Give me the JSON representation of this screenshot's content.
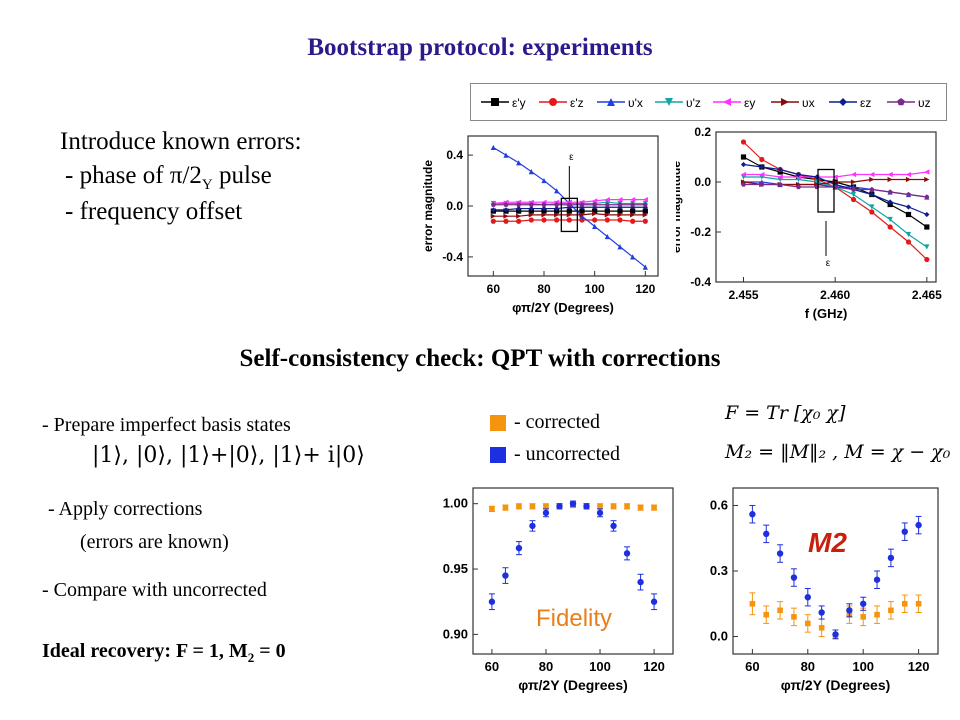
{
  "title": "Bootstrap protocol: experiments",
  "intro": {
    "heading": "Introduce known errors:",
    "item1": "- phase of  π/2",
    "item1_sub": "Y",
    "item1_tail": "  pulse",
    "item2": "- frequency offset"
  },
  "subtitle": "Self-consistency check: QPT with corrections",
  "steps": {
    "prepare": "- Prepare imperfect basis states",
    "kets": "|1⟩,  |0⟩,  |1⟩+|0⟩,  |1⟩+ i|0⟩",
    "apply": "- Apply corrections",
    "apply_note": "(errors are known)",
    "compare": "- Compare with uncorrected",
    "ideal": "Ideal recovery: F = 1,  M",
    "ideal_sub": "2",
    "ideal_tail": " = 0"
  },
  "key": {
    "corrected": "- corrected",
    "uncorrected": "- uncorrected",
    "corrected_color": "#f5950f",
    "uncorrected_color": "#1d2fe0"
  },
  "formulas": {
    "f": "F = Tr [χ₀ χ]",
    "m2": "M₂ = ‖M‖₂ ,   M = χ − χ₀"
  },
  "legend": {
    "entries": [
      {
        "label": "ε'y",
        "color": "#000000",
        "marker": "square"
      },
      {
        "label": "ε'z",
        "color": "#e31a1c",
        "marker": "circle"
      },
      {
        "label": "υ'x",
        "color": "#1f3fe0",
        "marker": "triangle-up"
      },
      {
        "label": "υ'z",
        "color": "#12a5a5",
        "marker": "triangle-down"
      },
      {
        "label": "εy",
        "color": "#ff33ff",
        "marker": "triangle-left"
      },
      {
        "label": "υx",
        "color": "#8b0a0a",
        "marker": "triangle-right"
      },
      {
        "label": "εz",
        "color": "#0d1f8f",
        "marker": "diamond"
      },
      {
        "label": "υz",
        "color": "#7a2a8a",
        "marker": "pentagon"
      }
    ]
  },
  "chart_data": [
    {
      "id": "phase",
      "type": "line",
      "xlabel": "φπ/2Y (Degrees)",
      "ylabel": "error magnitude",
      "xlim": [
        50,
        125
      ],
      "ylim": [
        -0.55,
        0.55
      ],
      "xticks": [
        60,
        80,
        100,
        120
      ],
      "yticks": [
        -0.4,
        0.0,
        0.4
      ],
      "ytick_labels": [
        "-0.4",
        "0.0",
        "0.4"
      ],
      "annotation": "ε",
      "x": [
        60,
        65,
        70,
        75,
        80,
        85,
        90,
        95,
        100,
        105,
        110,
        115,
        120
      ],
      "series": [
        {
          "name": "ε'y",
          "values": [
            -0.04,
            -0.04,
            -0.04,
            -0.04,
            -0.04,
            -0.04,
            -0.04,
            -0.04,
            -0.04,
            -0.04,
            -0.04,
            -0.04,
            -0.04
          ]
        },
        {
          "name": "ε'z",
          "values": [
            -0.12,
            -0.12,
            -0.12,
            -0.11,
            -0.11,
            -0.11,
            -0.11,
            -0.11,
            -0.11,
            -0.11,
            -0.11,
            -0.12,
            -0.12
          ]
        },
        {
          "name": "υ'x",
          "values": [
            0.46,
            0.4,
            0.34,
            0.27,
            0.2,
            0.12,
            0.02,
            -0.08,
            -0.16,
            -0.24,
            -0.32,
            -0.4,
            -0.48
          ]
        },
        {
          "name": "υ'z",
          "values": [
            0.02,
            0.02,
            0.02,
            0.02,
            0.01,
            0.02,
            0.02,
            0.02,
            0.02,
            0.03,
            0.02,
            0.02,
            0.02
          ]
        },
        {
          "name": "εy",
          "values": [
            0.02,
            0.03,
            0.03,
            0.03,
            0.03,
            0.03,
            0.03,
            0.03,
            0.04,
            0.05,
            0.05,
            0.05,
            0.05
          ]
        },
        {
          "name": "υx",
          "values": [
            -0.08,
            -0.08,
            -0.08,
            -0.07,
            -0.07,
            -0.07,
            -0.07,
            -0.07,
            -0.06,
            -0.07,
            -0.07,
            -0.07,
            -0.07
          ]
        },
        {
          "name": "εz",
          "values": [
            -0.03,
            -0.03,
            -0.02,
            -0.02,
            -0.02,
            -0.02,
            -0.01,
            -0.01,
            -0.01,
            -0.01,
            -0.01,
            -0.01,
            -0.01
          ]
        },
        {
          "name": "υz",
          "values": [
            0.01,
            0.01,
            0.01,
            0.01,
            0.01,
            0.01,
            0.01,
            0.01,
            0.01,
            0.01,
            0.01,
            0.01,
            0.01
          ]
        }
      ]
    },
    {
      "id": "frequency",
      "type": "line",
      "xlabel": "f (GHz)",
      "ylabel": "error magnitude",
      "xlim": [
        2.4535,
        2.4655
      ],
      "ylim": [
        -0.4,
        0.2
      ],
      "xticks": [
        2.455,
        2.46,
        2.465
      ],
      "xtick_labels": [
        "2.455",
        "2.460",
        "2.465"
      ],
      "yticks": [
        -0.4,
        -0.2,
        0.0,
        0.2
      ],
      "ytick_labels": [
        "-0.4",
        "-0.2",
        "0.0",
        "0.2"
      ],
      "annotation": "ε",
      "x": [
        2.455,
        2.456,
        2.457,
        2.458,
        2.459,
        2.46,
        2.461,
        2.462,
        2.463,
        2.464,
        2.465
      ],
      "series": [
        {
          "name": "ε'y",
          "values": [
            0.1,
            0.06,
            0.04,
            0.02,
            0.01,
            0.0,
            -0.02,
            -0.05,
            -0.09,
            -0.13,
            -0.18
          ]
        },
        {
          "name": "ε'z",
          "values": [
            0.16,
            0.09,
            0.05,
            0.03,
            0.01,
            -0.02,
            -0.07,
            -0.12,
            -0.18,
            -0.24,
            -0.31
          ]
        },
        {
          "name": "υ'x",
          "values": [
            0.0,
            0.0,
            -0.01,
            -0.01,
            -0.01,
            -0.02,
            -0.02,
            -0.03,
            -0.04,
            -0.05,
            -0.06
          ]
        },
        {
          "name": "υ'z",
          "values": [
            0.02,
            0.02,
            0.01,
            0.01,
            0.0,
            -0.02,
            -0.05,
            -0.1,
            -0.15,
            -0.21,
            -0.26
          ]
        },
        {
          "name": "εy",
          "values": [
            0.03,
            0.03,
            0.02,
            0.02,
            0.02,
            0.02,
            0.03,
            0.03,
            0.03,
            0.03,
            0.04
          ]
        },
        {
          "name": "υx",
          "values": [
            0.0,
            -0.01,
            -0.01,
            -0.01,
            -0.01,
            0.0,
            0.0,
            0.01,
            0.01,
            0.01,
            0.01
          ]
        },
        {
          "name": "εz",
          "values": [
            0.07,
            0.06,
            0.05,
            0.03,
            0.02,
            -0.01,
            -0.03,
            -0.05,
            -0.08,
            -0.1,
            -0.13
          ]
        },
        {
          "name": "υz",
          "values": [
            -0.01,
            -0.01,
            -0.01,
            -0.02,
            -0.02,
            -0.02,
            -0.03,
            -0.03,
            -0.04,
            -0.05,
            -0.06
          ]
        }
      ]
    },
    {
      "id": "fidelity",
      "type": "scatter",
      "xlabel": "φπ/2Y (Degrees)",
      "ylabel": "",
      "annotation": "Fidelity",
      "xlim": [
        53,
        127
      ],
      "ylim": [
        0.885,
        1.012
      ],
      "xticks": [
        60,
        80,
        100,
        120
      ],
      "yticks": [
        0.9,
        0.95,
        1.0
      ],
      "ytick_labels": [
        "0.90",
        "0.95",
        "1.00"
      ],
      "x": [
        60,
        65,
        70,
        75,
        80,
        85,
        90,
        95,
        100,
        105,
        110,
        115,
        120
      ],
      "series": [
        {
          "name": "corrected",
          "color": "#f5950f",
          "marker": "square",
          "values": [
            0.996,
            0.997,
            0.998,
            0.998,
            0.998,
            0.998,
            0.999,
            0.998,
            0.998,
            0.998,
            0.998,
            0.997,
            0.997
          ],
          "err": [
            0.002,
            0.002,
            0.002,
            0.002,
            0.002,
            0.002,
            0.002,
            0.002,
            0.002,
            0.002,
            0.002,
            0.002,
            0.002
          ]
        },
        {
          "name": "uncorrected",
          "color": "#1d2fe0",
          "marker": "circle",
          "values": [
            0.925,
            0.945,
            0.966,
            0.983,
            0.993,
            0.998,
            1.0,
            0.998,
            0.993,
            0.983,
            0.962,
            0.94,
            0.925
          ],
          "err": [
            0.006,
            0.006,
            0.005,
            0.004,
            0.003,
            0.002,
            0.002,
            0.002,
            0.003,
            0.004,
            0.005,
            0.006,
            0.006
          ]
        }
      ]
    },
    {
      "id": "m2",
      "type": "scatter",
      "xlabel": "φπ/2Y (Degrees)",
      "ylabel": "",
      "annotation": "M2",
      "xlim": [
        53,
        127
      ],
      "ylim": [
        -0.08,
        0.68
      ],
      "xticks": [
        60,
        80,
        100,
        120
      ],
      "yticks": [
        0.0,
        0.3,
        0.6
      ],
      "ytick_labels": [
        "0.0",
        "0.3",
        "0.6"
      ],
      "x": [
        60,
        65,
        70,
        75,
        80,
        85,
        90,
        95,
        100,
        105,
        110,
        115,
        120
      ],
      "series": [
        {
          "name": "corrected",
          "color": "#f5950f",
          "marker": "square",
          "values": [
            0.15,
            0.1,
            0.12,
            0.09,
            0.06,
            0.04,
            0.0,
            0.1,
            0.09,
            0.1,
            0.12,
            0.15,
            0.15
          ],
          "err": [
            0.05,
            0.04,
            0.04,
            0.04,
            0.04,
            0.04,
            0.0,
            0.04,
            0.04,
            0.04,
            0.04,
            0.04,
            0.04
          ]
        },
        {
          "name": "uncorrected",
          "color": "#1d2fe0",
          "marker": "circle",
          "values": [
            0.56,
            0.47,
            0.38,
            0.27,
            0.18,
            0.11,
            0.01,
            0.12,
            0.15,
            0.26,
            0.36,
            0.48,
            0.51
          ],
          "err": [
            0.04,
            0.04,
            0.04,
            0.04,
            0.04,
            0.03,
            0.02,
            0.03,
            0.03,
            0.04,
            0.04,
            0.04,
            0.04
          ]
        }
      ]
    }
  ]
}
